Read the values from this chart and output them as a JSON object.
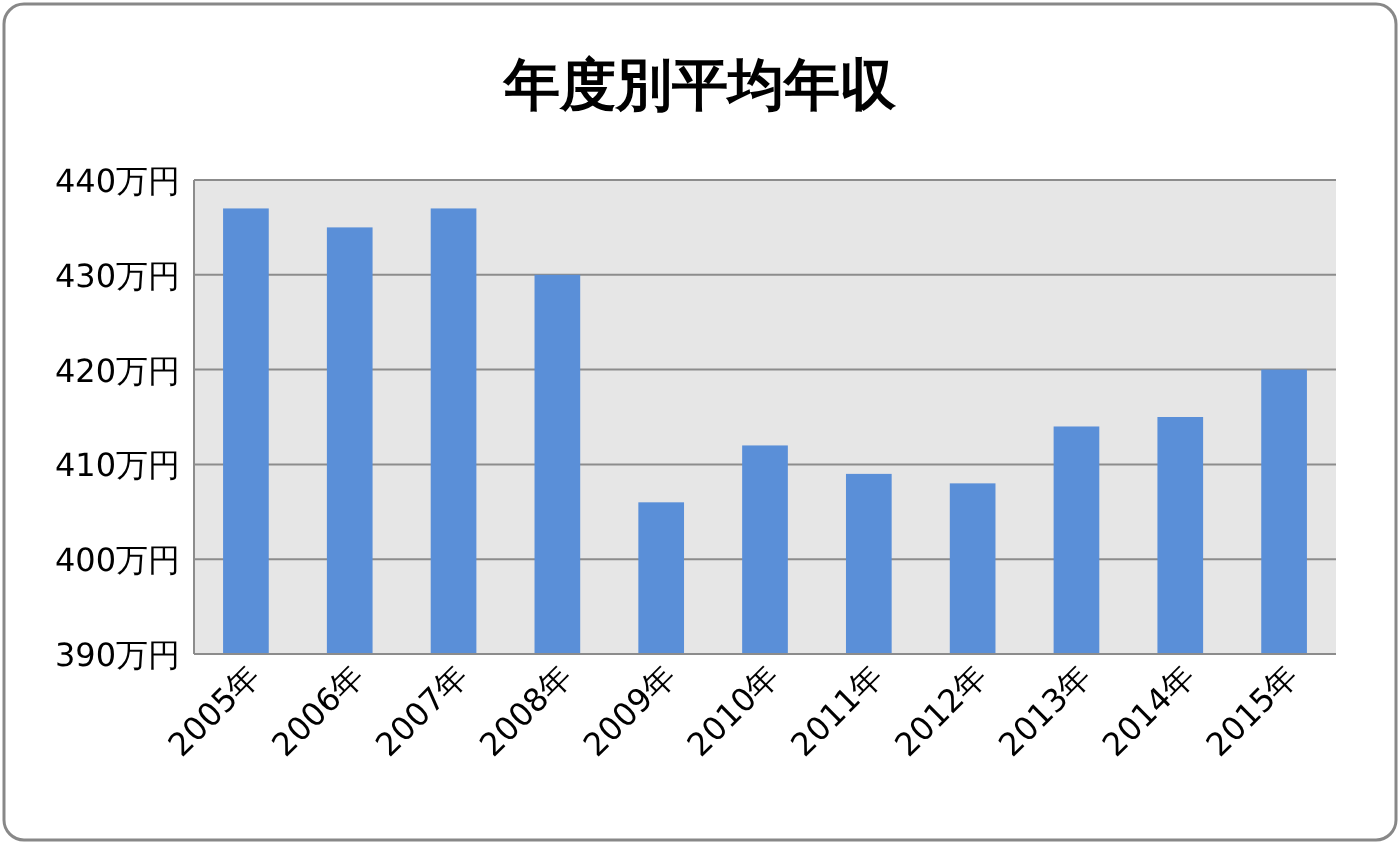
{
  "chart_data": {
    "type": "bar",
    "title": "年度別平均年収",
    "categories": [
      "2005年",
      "2006年",
      "2007年",
      "2008年",
      "2009年",
      "2010年",
      "2011年",
      "2012年",
      "2013年",
      "2014年",
      "2015年"
    ],
    "values": [
      437,
      435,
      437,
      430,
      406,
      412,
      409,
      408,
      414,
      415,
      420
    ],
    "color": "#5a8fd8",
    "ylim": [
      390,
      440
    ],
    "yticks": [
      {
        "value": 390,
        "label": "390万円"
      },
      {
        "value": 400,
        "label": "400万円"
      },
      {
        "value": 410,
        "label": "410万円"
      },
      {
        "value": 420,
        "label": "420万円"
      },
      {
        "value": 430,
        "label": "430万円"
      },
      {
        "value": 440,
        "label": "440万円"
      }
    ],
    "grid": "y"
  }
}
